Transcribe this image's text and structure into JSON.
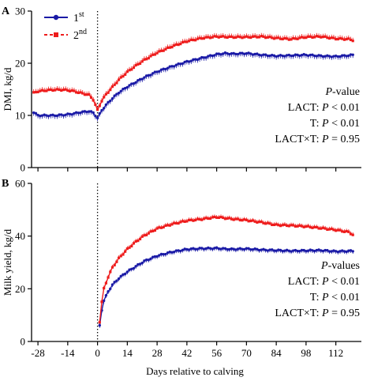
{
  "colors": {
    "first": "#1a1aa6",
    "second": "#ee1c1c",
    "axis": "#000000"
  },
  "chart_data": [
    {
      "type": "line",
      "panel_label": "A",
      "ylabel": "DMI, kg/d",
      "ylim": [
        0,
        30
      ],
      "yticks": [
        "0",
        "10",
        "20",
        "30"
      ],
      "xlim": [
        -31,
        124
      ],
      "xticks": [
        -28,
        -14,
        0,
        14,
        28,
        42,
        56,
        70,
        84,
        98,
        112
      ],
      "calving_line_x": 0,
      "legend": {
        "placement": "top-left",
        "entries": [
          {
            "main": "1",
            "sup": "st"
          },
          {
            "main": "2",
            "sup": "nd"
          }
        ]
      },
      "annotation": {
        "title_italic": "P",
        "title_rest": "-value",
        "lines": [
          {
            "term": "LACT:",
            "italic": "P",
            "rel": "< 0.01"
          },
          {
            "term": "T:",
            "italic": "P",
            "rel": "< 0.01"
          },
          {
            "term": "LACT×T:",
            "italic": "P",
            "rel": "= 0.95"
          }
        ]
      },
      "series": [
        {
          "name": "1st",
          "points": [
            [
              -30,
              10.6
            ],
            [
              -28,
              10.0
            ],
            [
              -24,
              10.0
            ],
            [
              -20,
              10.0
            ],
            [
              -16,
              10.1
            ],
            [
              -12,
              10.3
            ],
            [
              -8,
              10.6
            ],
            [
              -4,
              10.8
            ],
            [
              -2,
              10.5
            ],
            [
              0,
              9.5
            ],
            [
              2,
              11.0
            ],
            [
              4,
              12.0
            ],
            [
              7,
              13.3
            ],
            [
              10,
              14.4
            ],
            [
              14,
              15.5
            ],
            [
              18,
              16.4
            ],
            [
              22,
              17.3
            ],
            [
              28,
              18.4
            ],
            [
              35,
              19.4
            ],
            [
              42,
              20.3
            ],
            [
              49,
              21.0
            ],
            [
              56,
              21.7
            ],
            [
              60,
              21.9
            ],
            [
              64,
              21.8
            ],
            [
              70,
              21.9
            ],
            [
              77,
              21.6
            ],
            [
              84,
              21.4
            ],
            [
              91,
              21.5
            ],
            [
              98,
              21.6
            ],
            [
              105,
              21.4
            ],
            [
              112,
              21.3
            ],
            [
              118,
              21.5
            ],
            [
              120,
              21.6
            ]
          ]
        },
        {
          "name": "2nd",
          "points": [
            [
              -30,
              14.3
            ],
            [
              -28,
              14.6
            ],
            [
              -24,
              14.8
            ],
            [
              -20,
              14.9
            ],
            [
              -16,
              14.9
            ],
            [
              -12,
              14.7
            ],
            [
              -8,
              14.3
            ],
            [
              -4,
              13.9
            ],
            [
              -2,
              13.0
            ],
            [
              0,
              11.0
            ],
            [
              2,
              12.8
            ],
            [
              4,
              14.0
            ],
            [
              7,
              15.4
            ],
            [
              10,
              16.8
            ],
            [
              14,
              18.3
            ],
            [
              18,
              19.5
            ],
            [
              22,
              20.6
            ],
            [
              28,
              22.0
            ],
            [
              35,
              23.2
            ],
            [
              42,
              24.2
            ],
            [
              49,
              24.8
            ],
            [
              56,
              25.1
            ],
            [
              63,
              25.0
            ],
            [
              70,
              25.0
            ],
            [
              77,
              25.1
            ],
            [
              84,
              24.8
            ],
            [
              91,
              24.6
            ],
            [
              98,
              25.0
            ],
            [
              105,
              25.1
            ],
            [
              112,
              24.7
            ],
            [
              118,
              24.6
            ],
            [
              120,
              24.4
            ]
          ]
        }
      ]
    },
    {
      "type": "line",
      "panel_label": "B",
      "ylabel": "Milk yield, kg/d",
      "xlabel": "Days relative to calving",
      "ylim": [
        0,
        60
      ],
      "yticks": [
        "0",
        "20",
        "40",
        "60"
      ],
      "xlim": [
        -31,
        124
      ],
      "xticks": [
        -28,
        -14,
        0,
        14,
        28,
        42,
        56,
        70,
        84,
        98,
        112
      ],
      "calving_line_x": 0,
      "annotation": {
        "title_italic": "P",
        "title_rest": "-values",
        "lines": [
          {
            "term": "LACT:",
            "italic": "P",
            "rel": "< 0.01"
          },
          {
            "term": "T:",
            "italic": "P",
            "rel": "< 0.01"
          },
          {
            "term": "LACT×T:",
            "italic": "P",
            "rel": "= 0.95"
          }
        ]
      },
      "series": [
        {
          "name": "1st",
          "points": [
            [
              1,
              6.0
            ],
            [
              2,
              12.0
            ],
            [
              3,
              15.5
            ],
            [
              5,
              19.0
            ],
            [
              7,
              21.5
            ],
            [
              10,
              24.0
            ],
            [
              14,
              26.5
            ],
            [
              18,
              28.5
            ],
            [
              22,
              30.5
            ],
            [
              28,
              32.5
            ],
            [
              35,
              34.0
            ],
            [
              42,
              35.0
            ],
            [
              49,
              35.3
            ],
            [
              56,
              35.4
            ],
            [
              63,
              35.0
            ],
            [
              70,
              35.2
            ],
            [
              77,
              34.8
            ],
            [
              84,
              34.6
            ],
            [
              91,
              34.4
            ],
            [
              98,
              34.5
            ],
            [
              105,
              34.6
            ],
            [
              112,
              34.2
            ],
            [
              118,
              34.3
            ],
            [
              120,
              34.4
            ]
          ]
        },
        {
          "name": "2nd",
          "points": [
            [
              1,
              7.5
            ],
            [
              2,
              15.0
            ],
            [
              3,
              20.0
            ],
            [
              5,
              24.5
            ],
            [
              7,
              28.0
            ],
            [
              10,
              31.5
            ],
            [
              14,
              35.0
            ],
            [
              18,
              37.8
            ],
            [
              22,
              40.2
            ],
            [
              28,
              42.8
            ],
            [
              35,
              44.5
            ],
            [
              42,
              45.8
            ],
            [
              49,
              46.4
            ],
            [
              56,
              47.2
            ],
            [
              63,
              46.5
            ],
            [
              70,
              46.0
            ],
            [
              77,
              45.2
            ],
            [
              84,
              44.2
            ],
            [
              91,
              44.0
            ],
            [
              98,
              43.6
            ],
            [
              105,
              43.0
            ],
            [
              112,
              42.3
            ],
            [
              118,
              41.5
            ],
            [
              120,
              40.5
            ]
          ]
        }
      ]
    }
  ]
}
